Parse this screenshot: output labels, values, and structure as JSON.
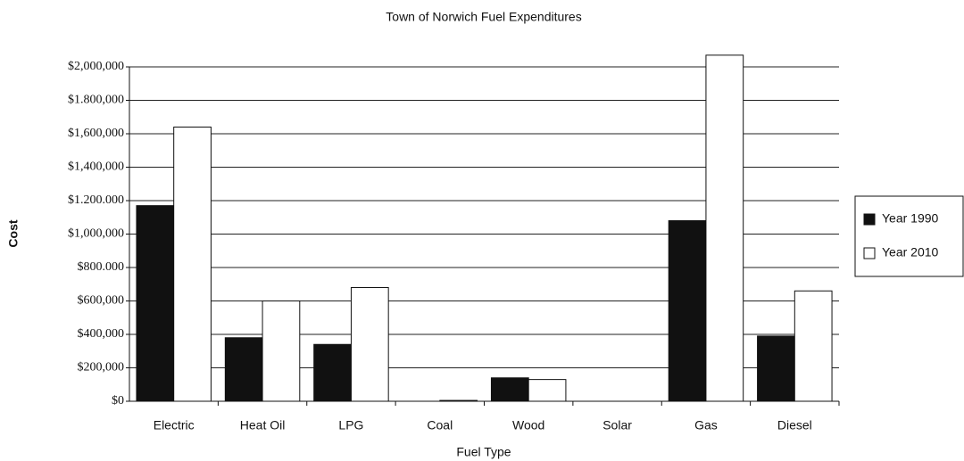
{
  "chart_data": {
    "type": "bar",
    "title": "Town of Norwich Fuel Expenditures",
    "xlabel": "Fuel Type",
    "ylabel": "Cost",
    "categories": [
      "Electric",
      "Heat Oil",
      "LPG",
      "Coal",
      "Wood",
      "Solar",
      "Gas",
      "Diesel"
    ],
    "series": [
      {
        "name": "Year 1990",
        "color": "#111111",
        "values": [
          1170000,
          380000,
          340000,
          0,
          140000,
          0,
          1080000,
          390000
        ]
      },
      {
        "name": "Year 2010",
        "color": "#ffffff",
        "values": [
          1640000,
          600000,
          680000,
          5000,
          130000,
          0,
          2070000,
          660000
        ]
      }
    ],
    "ylim": [
      0,
      2000000
    ],
    "yticks": [
      {
        "value": 0,
        "label": "$0"
      },
      {
        "value": 200000,
        "label": "$200,000"
      },
      {
        "value": 400000,
        "label": "$400,000"
      },
      {
        "value": 600000,
        "label": "$600,000"
      },
      {
        "value": 800000,
        "label": "$800.000"
      },
      {
        "value": 1000000,
        "label": "$1,000,000"
      },
      {
        "value": 1200000,
        "label": "$1.200.000"
      },
      {
        "value": 1400000,
        "label": "$1,400,000"
      },
      {
        "value": 1600000,
        "label": "$1,600,000"
      },
      {
        "value": 1800000,
        "label": "$1.800,000"
      },
      {
        "value": 2000000,
        "label": "$2,000,000"
      }
    ],
    "grid": true,
    "legend": "right"
  }
}
